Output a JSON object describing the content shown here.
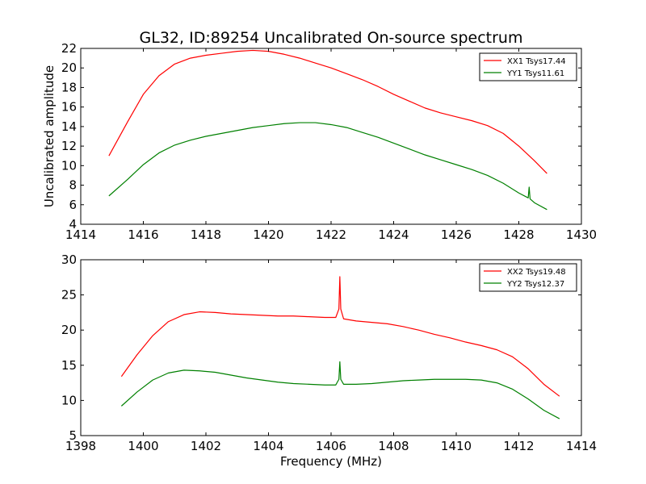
{
  "chart_data": [
    {
      "type": "line",
      "title": "GL32, ID:89254 Uncalibrated On-source spectrum",
      "xlabel": "",
      "ylabel": "Uncalibrated amplitude",
      "xlim": [
        1414,
        1430
      ],
      "ylim": [
        4,
        22
      ],
      "xticks": [
        1414,
        1416,
        1418,
        1420,
        1422,
        1424,
        1426,
        1428,
        1430
      ],
      "yticks": [
        4,
        6,
        8,
        10,
        12,
        14,
        16,
        18,
        20,
        22
      ],
      "grid": false,
      "legend": "top-right",
      "series": [
        {
          "name": "XX1 Tsys17.44",
          "color": "#ff0000",
          "x": [
            1414.9,
            1415.5,
            1416.0,
            1416.5,
            1417.0,
            1417.5,
            1418.0,
            1418.5,
            1419.0,
            1419.5,
            1420.0,
            1420.5,
            1421.0,
            1421.5,
            1422.0,
            1422.5,
            1423.0,
            1423.5,
            1424.0,
            1424.5,
            1425.0,
            1425.5,
            1426.0,
            1426.5,
            1427.0,
            1427.5,
            1428.0,
            1428.5,
            1428.9
          ],
          "y": [
            11.0,
            14.5,
            17.3,
            19.2,
            20.4,
            21.0,
            21.3,
            21.5,
            21.7,
            21.8,
            21.7,
            21.4,
            21.0,
            20.5,
            20.0,
            19.4,
            18.8,
            18.1,
            17.3,
            16.6,
            15.9,
            15.4,
            15.0,
            14.6,
            14.1,
            13.3,
            12.0,
            10.5,
            9.2
          ]
        },
        {
          "name": "YY1 Tsys11.61",
          "color": "#008000",
          "x": [
            1414.9,
            1415.5,
            1416.0,
            1416.5,
            1417.0,
            1417.5,
            1418.0,
            1418.5,
            1419.0,
            1419.5,
            1420.0,
            1420.5,
            1421.0,
            1421.5,
            1422.0,
            1422.5,
            1423.0,
            1423.5,
            1424.0,
            1424.5,
            1425.0,
            1425.5,
            1426.0,
            1426.5,
            1427.0,
            1427.5,
            1428.0,
            1428.3,
            1428.33,
            1428.36,
            1428.5,
            1428.9
          ],
          "y": [
            6.9,
            8.6,
            10.1,
            11.3,
            12.1,
            12.6,
            13.0,
            13.3,
            13.6,
            13.9,
            14.1,
            14.3,
            14.4,
            14.4,
            14.2,
            13.9,
            13.4,
            12.9,
            12.3,
            11.7,
            11.1,
            10.6,
            10.1,
            9.6,
            9.0,
            8.2,
            7.2,
            6.7,
            7.8,
            6.6,
            6.2,
            5.5
          ]
        }
      ]
    },
    {
      "type": "line",
      "title": "",
      "xlabel": "Frequency (MHz)",
      "ylabel": "",
      "xlim": [
        1398,
        1414
      ],
      "ylim": [
        5,
        30
      ],
      "xticks": [
        1398,
        1400,
        1402,
        1404,
        1406,
        1408,
        1410,
        1412,
        1414
      ],
      "yticks": [
        5,
        10,
        15,
        20,
        25,
        30
      ],
      "grid": false,
      "legend": "top-right",
      "series": [
        {
          "name": "XX2 Tsys19.48",
          "color": "#ff0000",
          "x": [
            1399.3,
            1399.8,
            1400.3,
            1400.8,
            1401.3,
            1401.8,
            1402.3,
            1402.8,
            1403.3,
            1403.8,
            1404.3,
            1404.8,
            1405.3,
            1405.8,
            1406.15,
            1406.25,
            1406.28,
            1406.31,
            1406.4,
            1406.8,
            1407.3,
            1407.8,
            1408.3,
            1408.8,
            1409.3,
            1409.8,
            1410.3,
            1410.8,
            1411.3,
            1411.8,
            1412.3,
            1412.8,
            1413.3
          ],
          "y": [
            13.4,
            16.5,
            19.2,
            21.2,
            22.2,
            22.6,
            22.5,
            22.3,
            22.2,
            22.1,
            22.0,
            22.0,
            21.9,
            21.8,
            21.8,
            23.0,
            27.6,
            23.0,
            21.6,
            21.3,
            21.1,
            20.9,
            20.5,
            20.0,
            19.4,
            18.9,
            18.3,
            17.8,
            17.2,
            16.2,
            14.5,
            12.3,
            10.6
          ]
        },
        {
          "name": "YY2 Tsys12.37",
          "color": "#008000",
          "x": [
            1399.3,
            1399.8,
            1400.3,
            1400.8,
            1401.3,
            1401.8,
            1402.3,
            1402.8,
            1403.3,
            1403.8,
            1404.3,
            1404.8,
            1405.3,
            1405.8,
            1406.15,
            1406.25,
            1406.28,
            1406.31,
            1406.4,
            1406.8,
            1407.3,
            1407.8,
            1408.3,
            1408.8,
            1409.3,
            1409.8,
            1410.3,
            1410.8,
            1411.3,
            1411.8,
            1412.3,
            1412.8,
            1413.3
          ],
          "y": [
            9.2,
            11.2,
            12.9,
            13.9,
            14.3,
            14.2,
            14.0,
            13.6,
            13.2,
            12.9,
            12.6,
            12.4,
            12.3,
            12.2,
            12.2,
            13.0,
            15.5,
            13.0,
            12.3,
            12.3,
            12.4,
            12.6,
            12.8,
            12.9,
            13.0,
            13.0,
            13.0,
            12.9,
            12.5,
            11.6,
            10.2,
            8.6,
            7.4
          ]
        }
      ]
    }
  ]
}
